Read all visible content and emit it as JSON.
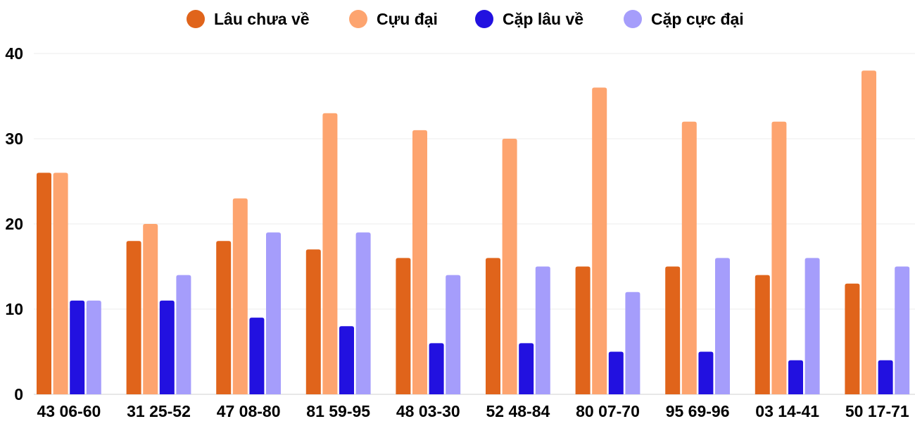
{
  "chart_data": {
    "type": "bar",
    "title": "",
    "xlabel": "",
    "ylabel": "",
    "ylim": [
      0,
      40
    ],
    "yticks": [
      0,
      10,
      20,
      30,
      40
    ],
    "grid": true,
    "legend_position": "top-center",
    "categories": [
      "43 06-60",
      "31 25-52",
      "47 08-80",
      "81 59-95",
      "48 03-30",
      "52 48-84",
      "80 07-70",
      "95 69-96",
      "03 14-41",
      "50 17-71"
    ],
    "series": [
      {
        "name": "Lâu chưa về",
        "color": "#e0641b",
        "values": [
          26,
          18,
          18,
          17,
          16,
          16,
          15,
          15,
          14,
          13
        ]
      },
      {
        "name": "Cựu đại",
        "color": "#fda46f",
        "values": [
          26,
          20,
          23,
          33,
          31,
          30,
          36,
          32,
          32,
          38
        ]
      },
      {
        "name": "Cặp lâu về",
        "color": "#2211e0",
        "values": [
          11,
          11,
          9,
          8,
          6,
          6,
          5,
          5,
          4,
          4
        ]
      },
      {
        "name": "Cặp cực đại",
        "color": "#a59dfb",
        "values": [
          11,
          14,
          19,
          19,
          14,
          15,
          12,
          16,
          16,
          15
        ]
      }
    ]
  }
}
